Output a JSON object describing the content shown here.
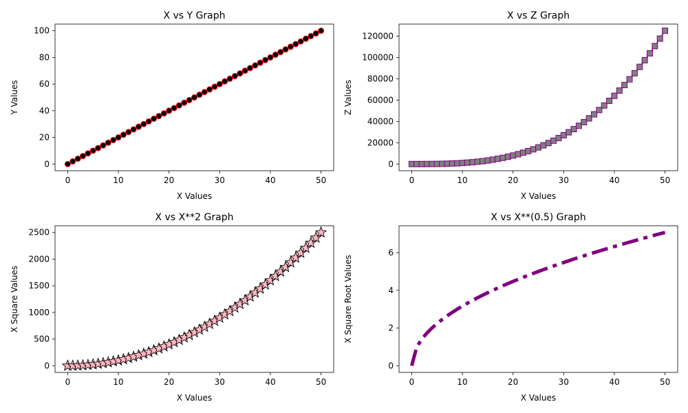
{
  "chart_data": [
    {
      "type": "line",
      "title": "X vs Y Graph",
      "xlabel": "X Values",
      "ylabel": "Y Values",
      "xlim": [
        -2.5,
        52.5
      ],
      "ylim": [
        -5,
        105
      ],
      "xticks": [
        0,
        10,
        20,
        30,
        40,
        50
      ],
      "yticks": [
        0,
        20,
        40,
        60,
        80,
        100
      ],
      "x": {
        "start": 0,
        "end": 50,
        "step": 1
      },
      "series": [
        {
          "formula": "2x",
          "line_color": "#ff0000",
          "marker": "circle",
          "marker_face": "#000000",
          "marker_edge": "#ff0000"
        }
      ]
    },
    {
      "type": "line",
      "title": "X vs Z Graph",
      "xlabel": "X Values",
      "ylabel": "Z Values",
      "xlim": [
        -2.5,
        52.5
      ],
      "ylim": [
        -6250,
        131250
      ],
      "xticks": [
        0,
        10,
        20,
        30,
        40,
        50
      ],
      "yticks": [
        0,
        20000,
        40000,
        60000,
        80000,
        100000,
        120000
      ],
      "x": {
        "start": 0,
        "end": 50,
        "step": 1
      },
      "series": [
        {
          "formula": "x^3",
          "line_color": "#800080",
          "marker": "square",
          "marker_face": "#808080",
          "marker_edge": "#800080"
        }
      ]
    },
    {
      "type": "line",
      "title": "X vs X**2 Graph",
      "xlabel": "X Values",
      "ylabel": "X Square Values",
      "xlim": [
        -2.5,
        52.5
      ],
      "ylim": [
        -125,
        2625
      ],
      "xticks": [
        0,
        10,
        20,
        30,
        40,
        50
      ],
      "yticks": [
        0,
        500,
        1000,
        1500,
        2000,
        2500
      ],
      "x": {
        "start": 0,
        "end": 50,
        "step": 1
      },
      "series": [
        {
          "formula": "x^2",
          "line_color": "#000000",
          "marker": "star",
          "marker_face": "#ffb6c1",
          "marker_edge": "#000000"
        }
      ]
    },
    {
      "type": "line",
      "title": "X vs X**(0.5) Graph",
      "xlabel": "X Values",
      "ylabel": "X Square Root Values",
      "xlim": [
        -2.5,
        52.5
      ],
      "ylim": [
        -0.354,
        7.425
      ],
      "xticks": [
        0,
        10,
        20,
        30,
        40,
        50
      ],
      "yticks": [
        0,
        2,
        4,
        6
      ],
      "x": {
        "start": 0,
        "end": 50,
        "step": 1
      },
      "series": [
        {
          "formula": "x^0.5",
          "line_color": "#800080",
          "line_style": "dash-dot",
          "marker": "none"
        }
      ]
    }
  ]
}
